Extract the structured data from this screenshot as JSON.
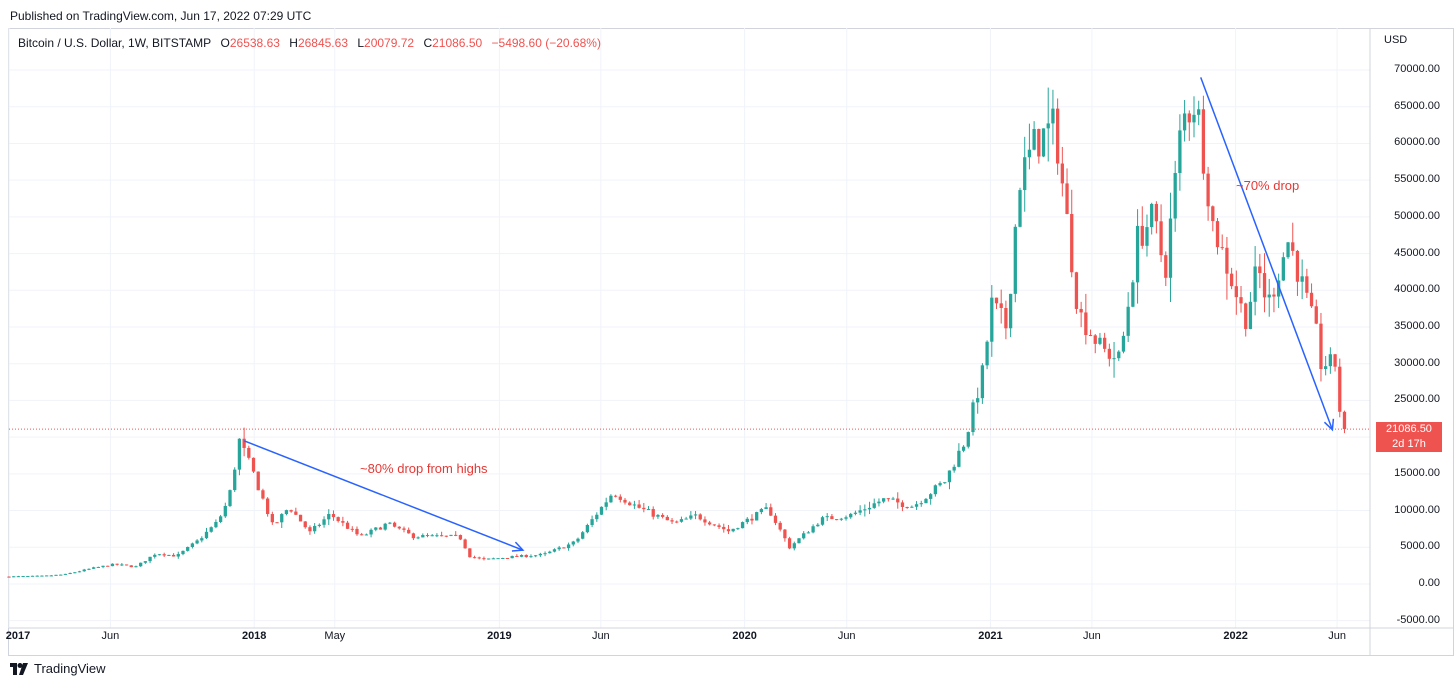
{
  "header": {
    "published": "Published on TradingView.com, Jun 17, 2022 07:29 UTC"
  },
  "ticker": {
    "name": "Bitcoin / U.S. Dollar, 1W, BITSTAMP",
    "o_label": "O",
    "o": "26538.63",
    "h_label": "H",
    "h": "26845.63",
    "l_label": "L",
    "l": "20079.72",
    "c_label": "C",
    "c": "21086.50",
    "change": "−5498.60 (−20.68%)"
  },
  "axis": {
    "currency": "USD"
  },
  "last_price": {
    "value": "21086.50",
    "countdown": "2d 17h"
  },
  "annotations": {
    "drop1": "~80% drop from highs",
    "drop2": "~70% drop"
  },
  "footer": {
    "brand": "TradingView"
  },
  "colors": {
    "up": "#26a69a",
    "down": "#ef5350",
    "arrow": "#2962ff",
    "grid": "#f0f3fa",
    "annotation": "#e53935"
  },
  "chart_data": {
    "type": "candlestick",
    "symbol": "Bitcoin / U.S. Dollar",
    "interval": "1W",
    "exchange": "BITSTAMP",
    "y_ticks": [
      -5000,
      0,
      5000,
      10000,
      15000,
      20000,
      25000,
      30000,
      35000,
      40000,
      45000,
      50000,
      55000,
      60000,
      65000,
      70000
    ],
    "y_tick_labels": [
      "-5000.00",
      "0.00",
      "5000.00",
      "10000.00",
      "15000.00",
      "20000.00",
      "25000.00",
      "30000.00",
      "35000.00",
      "40000.00",
      "45000.00",
      "50000.00",
      "55000.00",
      "60000.00",
      "65000.00",
      "70000.00"
    ],
    "ylim": [
      -6000,
      73000
    ],
    "xlim": [
      "2017-01-01",
      "2022-07-20"
    ],
    "x_ticks": [
      {
        "date": "2017-01-01",
        "label": "2017",
        "bold": true
      },
      {
        "date": "2017-06-01",
        "label": "Jun",
        "bold": false
      },
      {
        "date": "2018-01-01",
        "label": "2018",
        "bold": true
      },
      {
        "date": "2018-05-01",
        "label": "May",
        "bold": false
      },
      {
        "date": "2019-01-01",
        "label": "2019",
        "bold": true
      },
      {
        "date": "2019-06-01",
        "label": "Jun",
        "bold": false
      },
      {
        "date": "2020-01-01",
        "label": "2020",
        "bold": true
      },
      {
        "date": "2020-06-01",
        "label": "Jun",
        "bold": false
      },
      {
        "date": "2021-01-01",
        "label": "2021",
        "bold": true
      },
      {
        "date": "2021-06-01",
        "label": "Jun",
        "bold": false
      },
      {
        "date": "2022-01-01",
        "label": "2022",
        "bold": true
      },
      {
        "date": "2022-06-01",
        "label": "Jun",
        "bold": false
      }
    ],
    "price_path": [
      [
        "2017-01-01",
        1000
      ],
      [
        "2017-02-01",
        1050
      ],
      [
        "2017-03-01",
        1100
      ],
      [
        "2017-04-01",
        1300
      ],
      [
        "2017-05-15",
        2200
      ],
      [
        "2017-06-15",
        2700
      ],
      [
        "2017-07-15",
        2300
      ],
      [
        "2017-08-15",
        4200
      ],
      [
        "2017-09-15",
        3800
      ],
      [
        "2017-10-15",
        5800
      ],
      [
        "2017-11-15",
        8500
      ],
      [
        "2017-12-01",
        11500
      ],
      [
        "2017-12-17",
        19500
      ],
      [
        "2018-01-07",
        15000
      ],
      [
        "2018-02-05",
        7800
      ],
      [
        "2018-03-01",
        10500
      ],
      [
        "2018-04-01",
        7000
      ],
      [
        "2018-05-01",
        9500
      ],
      [
        "2018-06-15",
        6400
      ],
      [
        "2018-07-25",
        8200
      ],
      [
        "2018-09-01",
        6500
      ],
      [
        "2018-11-10",
        6400
      ],
      [
        "2018-11-25",
        3800
      ],
      [
        "2018-12-15",
        3300
      ],
      [
        "2019-01-15",
        3600
      ],
      [
        "2019-03-15",
        4000
      ],
      [
        "2019-05-01",
        5700
      ],
      [
        "2019-06-26",
        12500
      ],
      [
        "2019-08-01",
        10500
      ],
      [
        "2019-09-25",
        8200
      ],
      [
        "2019-10-28",
        9300
      ],
      [
        "2019-12-15",
        7200
      ],
      [
        "2020-02-12",
        10300
      ],
      [
        "2020-03-15",
        5000
      ],
      [
        "2020-05-01",
        8800
      ],
      [
        "2020-06-15",
        9400
      ],
      [
        "2020-08-01",
        11500
      ],
      [
        "2020-09-15",
        10600
      ],
      [
        "2020-11-01",
        14000
      ],
      [
        "2020-12-01",
        19500
      ],
      [
        "2020-12-28",
        29000
      ],
      [
        "2021-01-10",
        38000
      ],
      [
        "2021-02-01",
        35000
      ],
      [
        "2021-02-20",
        55000
      ],
      [
        "2021-03-15",
        60000
      ],
      [
        "2021-04-14",
        62500
      ],
      [
        "2021-05-19",
        37000
      ],
      [
        "2021-06-22",
        32000
      ],
      [
        "2021-07-20",
        30500
      ],
      [
        "2021-08-15",
        47000
      ],
      [
        "2021-09-07",
        50000
      ],
      [
        "2021-09-25",
        42500
      ],
      [
        "2021-10-20",
        63000
      ],
      [
        "2021-11-10",
        66000
      ],
      [
        "2021-12-05",
        49000
      ],
      [
        "2022-01-22",
        36000
      ],
      [
        "2022-02-10",
        43000
      ],
      [
        "2022-02-25",
        38000
      ],
      [
        "2022-03-28",
        47000
      ],
      [
        "2022-05-08",
        34000
      ],
      [
        "2022-05-15",
        30000
      ],
      [
        "2022-06-05",
        30000
      ],
      [
        "2022-06-15",
        21086.5
      ]
    ],
    "last_price": 21086.5,
    "annotation_arrows": [
      {
        "from": [
          "2017-12-17",
          19500
        ],
        "to": [
          "2019-02-05",
          4600
        ],
        "label": "~80% drop from highs"
      },
      {
        "from": [
          "2021-11-10",
          69000
        ],
        "to": [
          "2022-05-25",
          21000
        ],
        "label": "~70% drop"
      }
    ]
  }
}
